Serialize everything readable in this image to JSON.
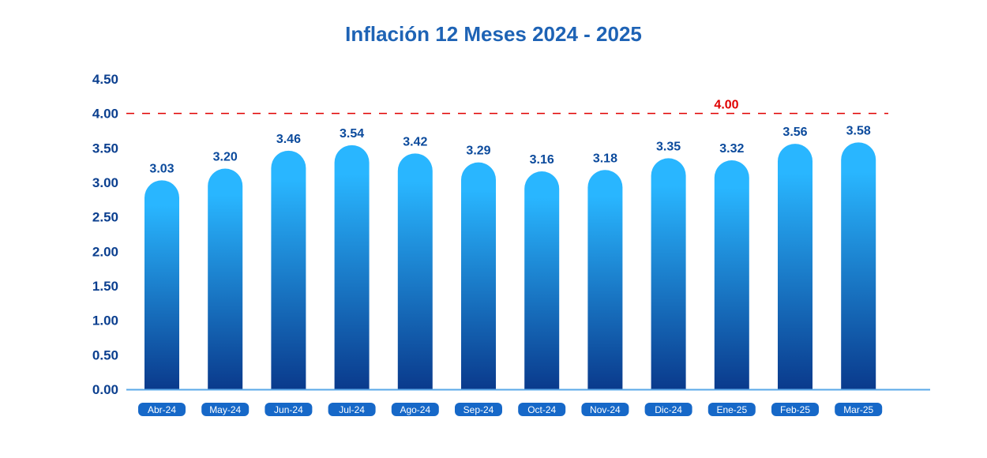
{
  "chart_data": {
    "type": "bar",
    "title": "Inflación 12 Meses 2024 - 2025",
    "categories": [
      "Abr-24",
      "May-24",
      "Jun-24",
      "Jul-24",
      "Ago-24",
      "Sep-24",
      "Oct-24",
      "Nov-24",
      "Dic-24",
      "Ene-25",
      "Feb-25",
      "Mar-25"
    ],
    "values": [
      3.03,
      3.2,
      3.46,
      3.54,
      3.42,
      3.29,
      3.16,
      3.18,
      3.35,
      3.32,
      3.56,
      3.58
    ],
    "value_labels": [
      "3.03",
      "3.20",
      "3.46",
      "3.54",
      "3.42",
      "3.29",
      "3.16",
      "3.18",
      "3.35",
      "3.32",
      "3.56",
      "3.58"
    ],
    "yticks": [
      "0.00",
      "0.50",
      "1.00",
      "1.50",
      "2.00",
      "2.50",
      "3.00",
      "3.50",
      "4.00",
      "4.50"
    ],
    "ylim": [
      0,
      4.5
    ],
    "reference_line": {
      "value": 4.0,
      "label": "4.00",
      "color": "#e00000",
      "style": "dashed"
    },
    "grid": false,
    "colors": {
      "bar_top": "#29b6ff",
      "bar_bottom": "#0a3a8c",
      "axis_labels": "#0b3f8f",
      "xlabel_pill": "#1668c8",
      "baseline": "#5aa8e8"
    }
  }
}
